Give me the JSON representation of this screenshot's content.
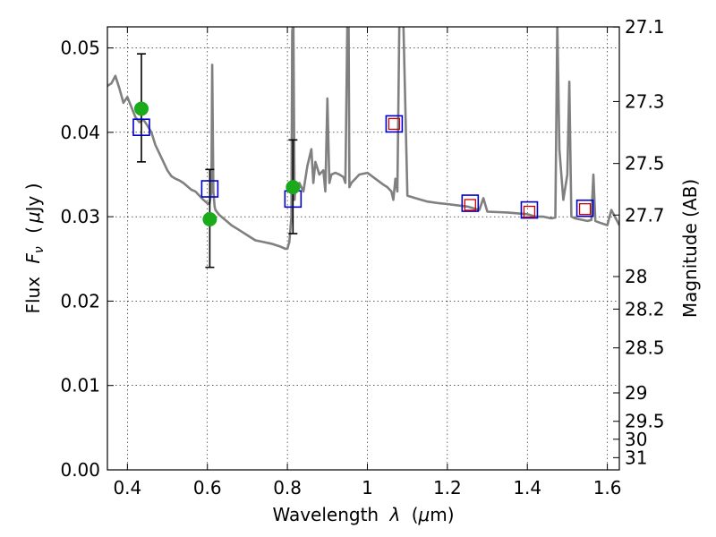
{
  "chart_data": {
    "type": "scatter",
    "xlabel_text": "Wavelength",
    "xlabel_symbol": "λ",
    "xlabel_unit_open": "(",
    "xlabel_unit_mu": "μ",
    "xlabel_unit_rest": "m)",
    "ylabel_text": "Flux",
    "ylabel_symbol": "F",
    "ylabel_symbol_sub": "ν",
    "ylabel_unit_open": "(",
    "ylabel_unit_mu": "μ",
    "ylabel_unit_rest": "Jy )",
    "y2label": "Magnitude (AB)",
    "xlim": [
      0.35,
      1.63
    ],
    "ylim": [
      0.0,
      0.0525
    ],
    "grid": true,
    "x_ticks": [
      {
        "value": 0.4,
        "label": "0.4"
      },
      {
        "value": 0.6,
        "label": "0.6"
      },
      {
        "value": 0.8,
        "label": "0.8"
      },
      {
        "value": 1.0,
        "label": "1"
      },
      {
        "value": 1.2,
        "label": "1.2"
      },
      {
        "value": 1.4,
        "label": "1.4"
      },
      {
        "value": 1.6,
        "label": "1.6"
      }
    ],
    "y_ticks": [
      {
        "value": 0.0,
        "label": "0.00"
      },
      {
        "value": 0.01,
        "label": "0.01"
      },
      {
        "value": 0.02,
        "label": "0.02"
      },
      {
        "value": 0.03,
        "label": "0.03"
      },
      {
        "value": 0.04,
        "label": "0.04"
      },
      {
        "value": 0.05,
        "label": "0.05"
      }
    ],
    "mag_ticks": [
      {
        "mag": 27.1,
        "label": "27.1"
      },
      {
        "mag": 27.3,
        "label": "27.3"
      },
      {
        "mag": 27.5,
        "label": "27.5"
      },
      {
        "mag": 27.7,
        "label": "27.7"
      },
      {
        "mag": 28.0,
        "label": "28"
      },
      {
        "mag": 28.2,
        "label": "28.2"
      },
      {
        "mag": 28.5,
        "label": "28.5"
      },
      {
        "mag": 29.0,
        "label": "29"
      },
      {
        "mag": 29.5,
        "label": "29.5"
      },
      {
        "mag": 30.0,
        "label": "30"
      },
      {
        "mag": 31.0,
        "label": "31"
      }
    ],
    "series": [
      {
        "kind": "model_spectrum",
        "color": "#808080",
        "x": [
          0.35,
          0.36,
          0.37,
          0.38,
          0.39,
          0.4,
          0.41,
          0.42,
          0.43,
          0.44,
          0.45,
          0.46,
          0.47,
          0.48,
          0.49,
          0.5,
          0.51,
          0.52,
          0.53,
          0.54,
          0.55,
          0.56,
          0.57,
          0.58,
          0.59,
          0.6,
          0.605,
          0.61,
          0.612,
          0.615,
          0.618,
          0.62,
          0.63,
          0.64,
          0.65,
          0.66,
          0.68,
          0.7,
          0.72,
          0.74,
          0.76,
          0.78,
          0.795,
          0.8,
          0.805,
          0.81,
          0.812,
          0.815,
          0.818,
          0.82,
          0.83,
          0.84,
          0.85,
          0.86,
          0.865,
          0.87,
          0.88,
          0.89,
          0.895,
          0.9,
          0.905,
          0.91,
          0.92,
          0.93,
          0.94,
          0.945,
          0.95,
          0.953,
          0.955,
          0.96,
          0.98,
          1.0,
          1.02,
          1.04,
          1.05,
          1.06,
          1.065,
          1.07,
          1.075,
          1.08,
          1.085,
          1.09,
          1.1,
          1.12,
          1.15,
          1.18,
          1.2,
          1.25,
          1.28,
          1.29,
          1.3,
          1.35,
          1.4,
          1.42,
          1.44,
          1.46,
          1.47,
          1.475,
          1.48,
          1.49,
          1.5,
          1.505,
          1.51,
          1.52,
          1.53,
          1.55,
          1.56,
          1.565,
          1.57,
          1.58,
          1.6,
          1.61,
          1.63
        ],
        "y": [
          0.0455,
          0.0458,
          0.0467,
          0.0452,
          0.0435,
          0.0442,
          0.043,
          0.0418,
          0.0412,
          0.0415,
          0.0408,
          0.04,
          0.0385,
          0.0375,
          0.0365,
          0.0355,
          0.0348,
          0.0345,
          0.0343,
          0.034,
          0.0336,
          0.0332,
          0.033,
          0.0325,
          0.032,
          0.0316,
          0.0315,
          0.033,
          0.048,
          0.033,
          0.0312,
          0.0308,
          0.0302,
          0.0298,
          0.0294,
          0.029,
          0.0284,
          0.0278,
          0.0272,
          0.027,
          0.0268,
          0.0265,
          0.0262,
          0.0262,
          0.027,
          0.03,
          0.052,
          0.053,
          0.032,
          0.0335,
          0.034,
          0.033,
          0.036,
          0.038,
          0.034,
          0.0365,
          0.035,
          0.0355,
          0.033,
          0.044,
          0.034,
          0.035,
          0.0352,
          0.035,
          0.0347,
          0.034,
          0.053,
          0.053,
          0.0335,
          0.034,
          0.035,
          0.0352,
          0.0345,
          0.0338,
          0.0335,
          0.033,
          0.032,
          0.0345,
          0.033,
          0.053,
          0.053,
          0.053,
          0.0325,
          0.0322,
          0.0318,
          0.0316,
          0.0315,
          0.0312,
          0.0308,
          0.0322,
          0.0306,
          0.0305,
          0.0303,
          0.03,
          0.03,
          0.0298,
          0.0299,
          0.053,
          0.038,
          0.032,
          0.035,
          0.046,
          0.03,
          0.0298,
          0.0297,
          0.0295,
          0.0296,
          0.035,
          0.0295,
          0.0293,
          0.029,
          0.0308,
          0.029
        ]
      },
      {
        "kind": "observed_flux",
        "color": "#1aaa1a",
        "points": [
          {
            "x": 0.435,
            "y": 0.0428,
            "err_lo": 0.0365,
            "err_hi": 0.0493
          },
          {
            "x": 0.606,
            "y": 0.0297,
            "err_lo": 0.024,
            "err_hi": 0.0356
          },
          {
            "x": 0.814,
            "y": 0.0335,
            "err_lo": 0.028,
            "err_hi": 0.0391
          }
        ]
      },
      {
        "kind": "model_photometry_blue",
        "color": "#0000cc",
        "points": [
          {
            "x": 0.435,
            "y": 0.0406
          },
          {
            "x": 0.606,
            "y": 0.0333
          },
          {
            "x": 0.814,
            "y": 0.0321
          },
          {
            "x": 1.067,
            "y": 0.041
          },
          {
            "x": 1.257,
            "y": 0.0316
          },
          {
            "x": 1.405,
            "y": 0.0308
          },
          {
            "x": 1.544,
            "y": 0.031
          }
        ]
      },
      {
        "kind": "model_photometry_red",
        "color": "#cc0000",
        "points": [
          {
            "x": 1.067,
            "y": 0.041
          },
          {
            "x": 1.257,
            "y": 0.0314
          },
          {
            "x": 1.405,
            "y": 0.0306
          },
          {
            "x": 1.544,
            "y": 0.0309
          }
        ]
      }
    ]
  }
}
